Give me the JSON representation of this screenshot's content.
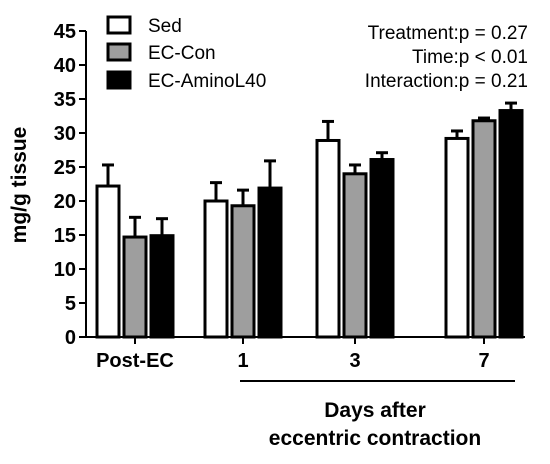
{
  "chart_data": {
    "type": "bar",
    "ylabel": "mg/g tissue",
    "ylim": [
      0,
      45
    ],
    "yticks": [
      0,
      5,
      10,
      15,
      20,
      25,
      30,
      35,
      40,
      45
    ],
    "categories": [
      "Post-EC",
      "1",
      "3",
      "7"
    ],
    "xlabel_lines": [
      "Days after",
      "eccentric contraction"
    ],
    "series": [
      {
        "name": "Sed",
        "fill": "#ffffff",
        "values": [
          22.2,
          20.0,
          28.9,
          29.2
        ],
        "errors": [
          3.1,
          2.7,
          2.8,
          1.1
        ]
      },
      {
        "name": "EC-Con",
        "fill": "#9e9e9e",
        "values": [
          14.7,
          19.3,
          24.0,
          31.8
        ],
        "errors": [
          2.9,
          2.3,
          1.3,
          0.4
        ]
      },
      {
        "name": "EC-AminoL40",
        "fill": "#000000",
        "values": [
          14.9,
          21.9,
          26.1,
          33.3
        ],
        "errors": [
          2.5,
          4.0,
          1.0,
          1.1
        ]
      }
    ],
    "annotations": [
      "Treatment:p = 0.27",
      "Time:p < 0.01",
      "Interaction:p = 0.21"
    ],
    "legend_position": "top-left",
    "grid": false
  }
}
